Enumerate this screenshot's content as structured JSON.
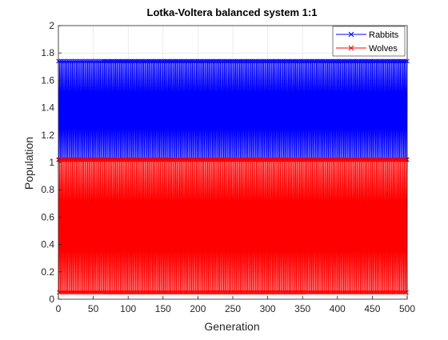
{
  "chart_data": {
    "type": "line",
    "title": "Lotka-Voltera balanced system 1:1",
    "xlabel": "Generation",
    "ylabel": "Population",
    "xlim": [
      0,
      500
    ],
    "ylim": [
      0,
      2
    ],
    "xticks": [
      0,
      50,
      100,
      150,
      200,
      250,
      300,
      350,
      400,
      450,
      500
    ],
    "yticks": [
      0,
      0.2,
      0.4,
      0.6,
      0.8,
      1,
      1.2,
      1.4,
      1.6,
      1.8,
      2
    ],
    "grid": true,
    "legend_position": "top-right",
    "series": [
      {
        "name": "Rabbits",
        "color": "#0000ff",
        "marker": "x",
        "range": [
          1.02,
          1.74
        ],
        "x_range": [
          0,
          500
        ],
        "note": "oscillates every generation between the range bounds"
      },
      {
        "name": "Wolves",
        "color": "#ff0000",
        "marker": "x",
        "range": [
          0.05,
          1.02
        ],
        "x_range": [
          0,
          500
        ],
        "note": "oscillates every generation between the range bounds"
      }
    ]
  }
}
